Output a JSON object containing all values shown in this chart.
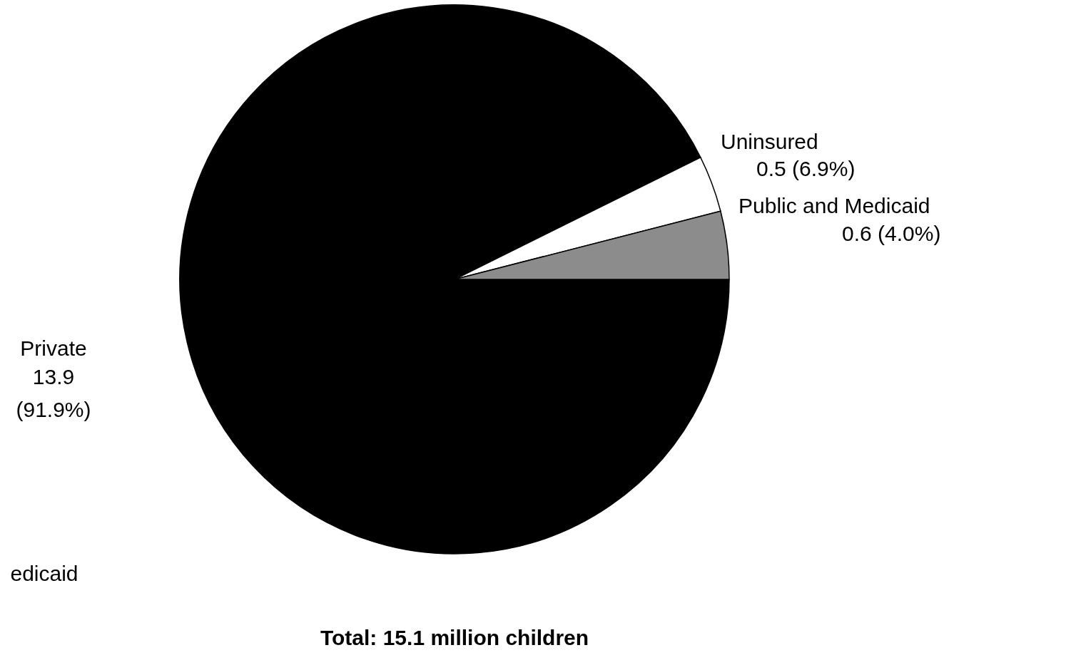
{
  "chart_data": {
    "type": "pie",
    "categories": [
      "Private",
      "Uninsured",
      "Public and Medicaid"
    ],
    "values": [
      13.9,
      0.5,
      0.6
    ],
    "colors": [
      "#000000",
      "#ffffff",
      "#8c8c8c"
    ],
    "value_labels": [
      "13.9\n(91.9%)",
      "0.5 (6.9%)",
      "0.6 (4.0%)"
    ],
    "annotations": [
      "Total: 15.1 million children",
      "edicaid"
    ]
  }
}
